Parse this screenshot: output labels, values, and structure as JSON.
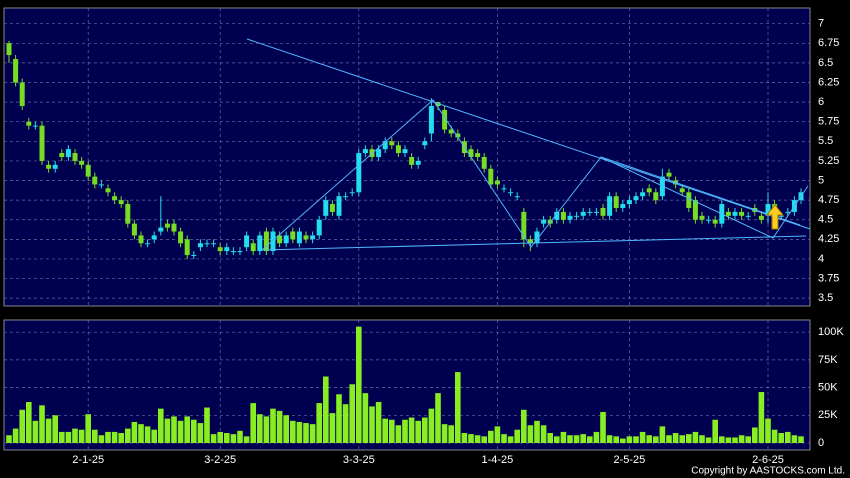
{
  "chart_data": {
    "type": "candlestick",
    "categories": [
      null,
      null,
      null,
      null,
      null,
      null,
      null,
      null,
      null,
      null,
      null,
      null,
      "2-1-25",
      null,
      null,
      null,
      null,
      null,
      null,
      null,
      null,
      null,
      null,
      null,
      null,
      null,
      null,
      null,
      null,
      null,
      null,
      null,
      "3-2-25",
      null,
      null,
      null,
      null,
      null,
      null,
      null,
      null,
      null,
      null,
      null,
      null,
      null,
      null,
      null,
      null,
      null,
      null,
      null,
      null,
      "3-3-25",
      null,
      null,
      null,
      null,
      null,
      null,
      null,
      null,
      null,
      null,
      null,
      null,
      null,
      null,
      null,
      null,
      null,
      null,
      null,
      null,
      "1-4-25",
      null,
      null,
      null,
      null,
      null,
      null,
      null,
      null,
      null,
      null,
      null,
      null,
      null,
      null,
      null,
      null,
      null,
      null,
      null,
      "2-5-25",
      null,
      null,
      null,
      null,
      null,
      null,
      null,
      null,
      null,
      null,
      null,
      null,
      null,
      null,
      null,
      null,
      null,
      null,
      null,
      null,
      "2-6-25",
      null,
      null,
      null,
      null,
      null
    ],
    "open": [
      6.75,
      6.55,
      6.25,
      5.75,
      5.7,
      5.7,
      5.2,
      5.15,
      5.35,
      5.3,
      5.35,
      5.25,
      5.2,
      5.05,
      4.95,
      4.9,
      4.8,
      4.75,
      4.7,
      4.45,
      4.3,
      4.2,
      4.25,
      4.35,
      4.45,
      4.45,
      4.35,
      4.25,
      4.05,
      4.15,
      4.2,
      4.2,
      4.15,
      4.1,
      4.1,
      4.1,
      4.15,
      4.2,
      4.1,
      4.35,
      4.1,
      4.3,
      4.2,
      4.35,
      4.2,
      4.3,
      4.25,
      4.3,
      4.55,
      4.7,
      4.55,
      4.8,
      4.85,
      4.85,
      5.35,
      5.4,
      5.3,
      5.4,
      5.5,
      5.45,
      5.35,
      5.3,
      5.2,
      5.45,
      5.6,
      6,
      5.9,
      5.65,
      5.6,
      5.5,
      5.4,
      5.35,
      5.3,
      5.15,
      5,
      4.9,
      4.85,
      4.8,
      4.6,
      4.25,
      4.2,
      4.45,
      4.5,
      4.5,
      4.6,
      4.5,
      4.55,
      4.55,
      4.6,
      4.6,
      4.65,
      4.55,
      4.8,
      4.65,
      4.7,
      4.75,
      4.8,
      4.9,
      4.85,
      4.8,
      5.1,
      5,
      4.9,
      4.85,
      4.75,
      4.55,
      4.5,
      4.5,
      4.45,
      4.6,
      4.55,
      4.6,
      4.55,
      4.65,
      4.55,
      4.55,
      4.7,
      4.55,
      4.6,
      4.6,
      4.75
    ],
    "high": [
      6.78,
      6.6,
      6.3,
      5.8,
      5.75,
      5.75,
      5.25,
      5.25,
      5.4,
      5.45,
      5.4,
      5.3,
      5.25,
      5.1,
      5,
      4.95,
      4.85,
      4.8,
      4.75,
      4.5,
      4.35,
      4.25,
      4.35,
      4.8,
      4.5,
      4.5,
      4.4,
      4.3,
      4.1,
      4.25,
      4.25,
      4.25,
      4.2,
      4.2,
      4.15,
      4.15,
      4.35,
      4.25,
      4.35,
      4.4,
      4.4,
      4.35,
      4.35,
      4.4,
      4.4,
      4.35,
      4.35,
      4.55,
      4.8,
      4.75,
      4.85,
      4.85,
      4.9,
      5.4,
      5.45,
      5.45,
      5.45,
      5.55,
      5.55,
      5.5,
      5.45,
      5.35,
      5.3,
      5.55,
      6.05,
      6,
      5.95,
      5.7,
      5.65,
      5.55,
      5.45,
      5.4,
      5.35,
      5.2,
      5.05,
      4.95,
      4.9,
      4.85,
      4.65,
      4.3,
      4.4,
      4.55,
      4.55,
      4.65,
      4.65,
      4.6,
      4.6,
      4.65,
      4.65,
      4.65,
      4.7,
      4.85,
      4.85,
      4.75,
      4.8,
      4.85,
      4.9,
      4.95,
      4.9,
      5.15,
      5.15,
      5.05,
      4.95,
      4.9,
      4.8,
      4.6,
      4.55,
      4.55,
      4.75,
      4.65,
      4.65,
      4.65,
      4.6,
      4.7,
      4.6,
      4.85,
      4.75,
      4.6,
      4.65,
      4.8,
      4.9
    ],
    "low": [
      6.5,
      6.2,
      5.9,
      5.65,
      5.65,
      5.2,
      5.1,
      5.1,
      5.25,
      5.25,
      5.2,
      5.15,
      5,
      4.9,
      4.9,
      4.8,
      4.7,
      4.65,
      4.4,
      4.25,
      4.15,
      4.15,
      4.2,
      4.3,
      4.35,
      4.3,
      4.15,
      4,
      4,
      4.1,
      4.15,
      4.15,
      4.05,
      4.05,
      4.05,
      4.05,
      4.1,
      4.05,
      4.05,
      4.05,
      4.05,
      4.15,
      4.15,
      4.2,
      4.15,
      4.2,
      4.2,
      4.25,
      4.5,
      4.55,
      4.5,
      4.75,
      4.8,
      4.8,
      5.3,
      5.25,
      5.25,
      5.35,
      5.4,
      5.3,
      5.3,
      5.15,
      5.15,
      5.4,
      5.5,
      5.9,
      5.6,
      5.55,
      5.5,
      5.3,
      5.25,
      5.25,
      5.1,
      4.9,
      4.9,
      4.85,
      4.8,
      4.75,
      4.15,
      4.1,
      4.15,
      4.4,
      4.4,
      4.45,
      4.45,
      4.45,
      4.5,
      4.5,
      4.55,
      4.55,
      4.5,
      4.5,
      4.6,
      4.6,
      4.65,
      4.7,
      4.75,
      4.8,
      4.7,
      4.75,
      5,
      4.9,
      4.8,
      4.6,
      4.45,
      4.45,
      4.45,
      4.4,
      4.4,
      4.5,
      4.5,
      4.5,
      4.5,
      4.55,
      4.45,
      4.45,
      4.45,
      4.5,
      4.55,
      4.55,
      4.7
    ],
    "close": [
      6.6,
      6.25,
      5.95,
      5.7,
      5.7,
      5.25,
      5.15,
      5.2,
      5.3,
      5.4,
      5.25,
      5.2,
      5.05,
      4.95,
      4.95,
      4.85,
      4.75,
      4.7,
      4.45,
      4.3,
      4.2,
      4.2,
      4.3,
      4.4,
      4.4,
      4.35,
      4.2,
      4.05,
      4.05,
      4.2,
      4.2,
      4.2,
      4.1,
      4.15,
      4.1,
      4.1,
      4.3,
      4.1,
      4.3,
      4.1,
      4.35,
      4.2,
      4.3,
      4.25,
      4.35,
      4.25,
      4.3,
      4.5,
      4.75,
      4.6,
      4.8,
      4.8,
      4.85,
      5.35,
      5.4,
      5.3,
      5.4,
      5.5,
      5.45,
      5.35,
      5.4,
      5.2,
      5.25,
      5.5,
      5.95,
      5.95,
      5.65,
      5.6,
      5.55,
      5.35,
      5.3,
      5.3,
      5.15,
      4.95,
      4.95,
      4.9,
      4.85,
      4.8,
      4.25,
      4.2,
      4.35,
      4.5,
      4.45,
      4.6,
      4.5,
      4.55,
      4.55,
      4.6,
      4.6,
      4.6,
      4.55,
      4.8,
      4.65,
      4.7,
      4.75,
      4.8,
      4.85,
      4.85,
      4.75,
      5.05,
      5.05,
      4.95,
      4.85,
      4.65,
      4.5,
      4.5,
      4.5,
      4.45,
      4.7,
      4.55,
      4.6,
      4.55,
      4.55,
      4.6,
      4.5,
      4.7,
      4.5,
      4.55,
      4.6,
      4.75,
      4.85
    ],
    "up_color": "#22ddee",
    "down_color": "#77dd22",
    "ylim": [
      3.4,
      7.2
    ],
    "yticks": [
      3.5,
      3.75,
      4,
      4.25,
      4.5,
      4.75,
      5,
      5.25,
      5.5,
      5.75,
      6,
      6.25,
      6.5,
      6.75,
      7
    ],
    "grid": true,
    "volume": {
      "color": "#88ee22",
      "values": [
        7000,
        13000,
        30000,
        37000,
        20000,
        34000,
        22000,
        25000,
        10000,
        10000,
        13000,
        12000,
        26000,
        12000,
        7000,
        10000,
        10000,
        9000,
        13000,
        19000,
        17000,
        15000,
        12000,
        31000,
        22000,
        24000,
        20000,
        24000,
        21000,
        18000,
        32000,
        8000,
        10000,
        9000,
        8000,
        11000,
        6000,
        36000,
        26000,
        24000,
        31000,
        29000,
        25000,
        20000,
        19000,
        18000,
        17000,
        36000,
        60000,
        27000,
        44000,
        35000,
        53000,
        105000,
        45000,
        33000,
        37000,
        22000,
        21000,
        16000,
        21000,
        23000,
        20000,
        23000,
        31000,
        45000,
        17000,
        16000,
        64000,
        9000,
        8000,
        7000,
        6000,
        11000,
        15000,
        8000,
        6000,
        12000,
        30000,
        16000,
        20000,
        16000,
        9000,
        6000,
        10000,
        7000,
        7000,
        8000,
        6000,
        10000,
        28000,
        7000,
        6000,
        4000,
        6000,
        6000,
        10000,
        7000,
        6000,
        15000,
        7000,
        9000,
        7000,
        8000,
        10000,
        7000,
        5000,
        21000,
        6000,
        5000,
        5000,
        7000,
        6000,
        14000,
        46000,
        22000,
        12000,
        9000,
        10000,
        7000,
        6000
      ],
      "ylim": [
        0,
        111000
      ],
      "yticks": [
        0,
        {
          "value": 25000,
          "label": "25K"
        },
        {
          "value": 50000,
          "label": "50K"
        },
        {
          "value": 75000,
          "label": "75K"
        },
        {
          "value": 100000,
          "label": "100K"
        }
      ]
    },
    "copyright": "Copyright by AASTOCKS.com Ltd."
  }
}
